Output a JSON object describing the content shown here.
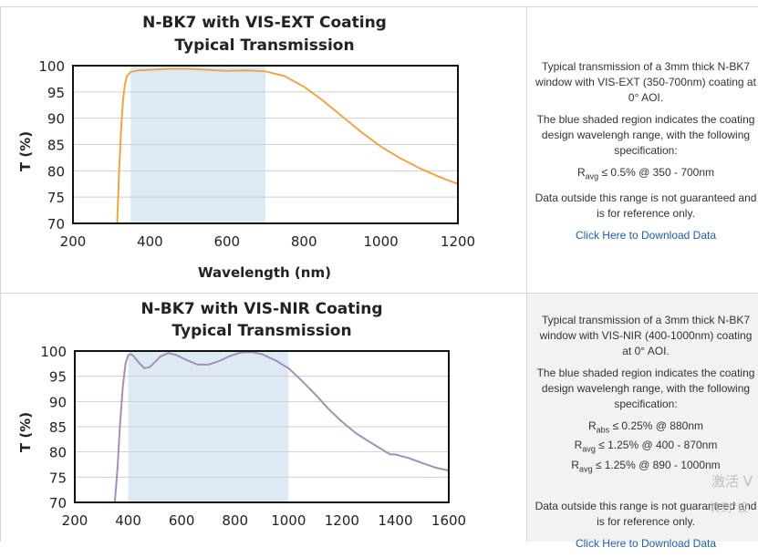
{
  "charts": [
    {
      "title_line1": "N-BK7 with VIS-EXT Coating",
      "title_line2": "Typical Transmission",
      "ylabel": "T (%)",
      "xlabel": "Wavelength (nm)",
      "x_ticks": [
        "200",
        "400",
        "600",
        "800",
        "1000",
        "1200"
      ],
      "y_ticks": [
        "70",
        "75",
        "80",
        "85",
        "90",
        "95",
        "100"
      ],
      "description": {
        "p1": "Typical transmission of a 3mm thick N-BK7 window with VIS-EXT (350-700nm) coating at 0° AOI.",
        "p2": "The blue shaded region indicates the coating design wavelengh range, with the following specification:",
        "specs": [
          {
            "sym": "R",
            "sub": "avg",
            "text": "≤ 0.5% @ 350 - 700nm"
          }
        ],
        "p3": "Data outside this range is not guaranteed and is for reference only.",
        "link": "Click Here to Download Data"
      }
    },
    {
      "title_line1": "N-BK7 with VIS-NIR Coating",
      "title_line2": "Typical Transmission",
      "ylabel": "T (%)",
      "x_ticks": [
        "200",
        "400",
        "600",
        "800",
        "1000",
        "1200",
        "1400",
        "1600"
      ],
      "y_ticks": [
        "70",
        "75",
        "80",
        "85",
        "90",
        "95",
        "100"
      ],
      "description": {
        "p1": "Typical transmission of a 3mm thick N-BK7 window with VIS-NIR (400-1000nm) coating at 0° AOI.",
        "p2": "The blue shaded region indicates the coating design wavelengh range, with the following specification:",
        "specs": [
          {
            "sym": "R",
            "sub": "abs",
            "text": "≤ 0.25% @ 880nm"
          },
          {
            "sym": "R",
            "sub": "avg",
            "text": "≤ 1.25% @ 400 - 870nm"
          },
          {
            "sym": "R",
            "sub": "avg",
            "text": "≤ 1.25% @ 890 - 1000nm"
          }
        ],
        "p3": "Data outside this range is not guaranteed and is for reference only.",
        "link": "Click Here to Download Data"
      }
    }
  ],
  "watermark": {
    "line1": "激活 V",
    "line2": "转到“设"
  },
  "chart_data": [
    {
      "type": "line",
      "title": "N-BK7 with VIS-EXT Coating Typical Transmission",
      "xlabel": "Wavelength (nm)",
      "ylabel": "T (%)",
      "xlim": [
        200,
        1200
      ],
      "ylim": [
        70,
        100
      ],
      "x_ticks": [
        200,
        400,
        600,
        800,
        1000,
        1200
      ],
      "y_ticks": [
        70,
        75,
        80,
        85,
        90,
        95,
        100
      ],
      "shaded_range": [
        350,
        700
      ],
      "shaded_color": "#dde9f5",
      "line_color": "#eda54a",
      "grid": true,
      "series": [
        {
          "x": [
            315,
            320,
            325,
            330,
            335,
            340,
            350,
            370,
            400,
            450,
            500,
            550,
            600,
            650,
            700,
            750,
            800,
            850,
            900,
            950,
            1000,
            1050,
            1100,
            1150,
            1200
          ],
          "values": [
            70,
            80,
            88,
            93.5,
            96.5,
            98,
            98.8,
            99.1,
            99.2,
            99.4,
            99.4,
            99.2,
            99.0,
            99.1,
            98.9,
            98.0,
            96.0,
            93.3,
            90.3,
            87.3,
            84.6,
            82.4,
            80.5,
            78.9,
            77.5
          ]
        }
      ]
    },
    {
      "type": "line",
      "title": "N-BK7 with VIS-NIR Coating Typical Transmission",
      "ylabel": "T (%)",
      "xlim": [
        200,
        1600
      ],
      "ylim": [
        70,
        100
      ],
      "x_ticks": [
        200,
        400,
        600,
        800,
        1000,
        1200,
        1400,
        1600
      ],
      "y_ticks": [
        70,
        75,
        80,
        85,
        90,
        95,
        100
      ],
      "shaded_range": [
        400,
        1000
      ],
      "shaded_color": "#dde9f5",
      "line_color": "#a68fb6",
      "grid": true,
      "series": [
        {
          "x": [
            350,
            360,
            370,
            380,
            390,
            400,
            410,
            420,
            440,
            460,
            480,
            500,
            520,
            550,
            580,
            620,
            660,
            700,
            740,
            780,
            820,
            860,
            900,
            950,
            1000,
            1050,
            1100,
            1150,
            1200,
            1250,
            1300,
            1350,
            1380,
            1400,
            1420,
            1450,
            1500,
            1550,
            1600
          ],
          "values": [
            70,
            77,
            86,
            93,
            97.5,
            99.2,
            99.4,
            99.0,
            97.7,
            96.6,
            96.8,
            97.8,
            98.9,
            99.6,
            99.2,
            98.2,
            97.3,
            97.3,
            98.0,
            99.0,
            99.7,
            99.8,
            99.4,
            98.2,
            96.6,
            94.1,
            91.4,
            88.5,
            86.0,
            83.8,
            82.1,
            80.5,
            79.5,
            79.5,
            79.2,
            78.8,
            77.8,
            76.9,
            76.3
          ]
        }
      ]
    }
  ]
}
